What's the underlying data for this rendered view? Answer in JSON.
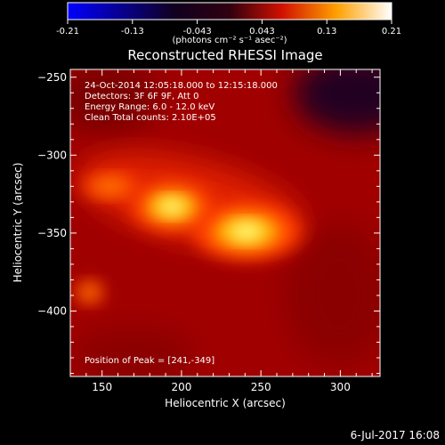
{
  "chart_data": {
    "type": "heatmap",
    "title": "Reconstructed RHESSI Image",
    "xlabel": "Heliocentric X (arcsec)",
    "ylabel": "Heliocentric Y (arcsec)",
    "xlim": [
      130,
      325
    ],
    "ylim": [
      -442,
      -245
    ],
    "x_ticks": [
      150,
      200,
      250,
      300
    ],
    "y_ticks": [
      -250,
      -300,
      -350,
      -400
    ],
    "colorbar": {
      "range": [
        -0.21,
        0.21
      ],
      "ticks": [
        "-0.21",
        "-0.13",
        "-0.043",
        "0.043",
        "0.13",
        "0.21"
      ],
      "label": "(photons cm⁻² s⁻¹ asec⁻²)",
      "colors": [
        "#0000ff",
        "#000000",
        "#ff0000",
        "#ffff00",
        "#ffffff"
      ]
    },
    "annotations": [
      "24-Oct-2014 12:05:18.000 to 12:15:18.000",
      "Detectors: 3F 6F 9F, Att 0",
      "Energy Range: 6.0 - 12.0 keV",
      "Clean    Total counts: 2.10E+05"
    ],
    "peak_label": "Position of Peak = [241,-349]",
    "sources": [
      {
        "x": 241,
        "y": -349,
        "intensity": 0.21
      },
      {
        "x": 194,
        "y": -333,
        "intensity": 0.17
      },
      {
        "x": 155,
        "y": -320,
        "intensity": 0.11
      },
      {
        "x": 142,
        "y": -388,
        "intensity": 0.06
      }
    ]
  },
  "footer": {
    "date": "6-Jul-2017 16:08"
  }
}
